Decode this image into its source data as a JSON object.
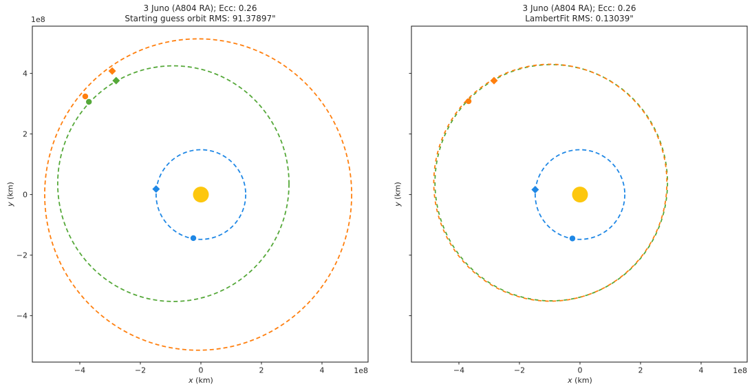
{
  "figure": {
    "background": "#ffffff",
    "frame_color": "#262626",
    "sun_color": "#fdc70e",
    "earth_color": "#1e87e5",
    "true_orbit_color": "#55a839",
    "fit_orbit_color": "#ff7f0e"
  },
  "chart_data": [
    {
      "panel": "left",
      "type": "line",
      "title_line1": "3 Juno (A804 RA); Ecc: 0.26",
      "title_line2": "Starting guess orbit RMS: 91.37897\"",
      "xlabel_var": "x",
      "xlabel_unit": " (km)",
      "ylabel_var": "y",
      "ylabel_unit": " (km)",
      "axis_offset_label": "1e8",
      "units": "1e8 km",
      "xlim": [
        -5.57,
        5.52
      ],
      "ylim": [
        -5.53,
        5.56
      ],
      "x_ticks": [
        -4,
        -2,
        0,
        2,
        4
      ],
      "x_tick_labels": [
        "−4",
        "−2",
        "0",
        "2",
        "4"
      ],
      "y_ticks": [
        4,
        2,
        0,
        -2,
        -4
      ],
      "y_tick_labels": [
        "4",
        "2",
        "0",
        "−2",
        "−4"
      ],
      "show_y_tick_labels": true,
      "show_y_offset_label": true,
      "grid": false,
      "legend": "none",
      "sun": {
        "name": "sun",
        "x": 0,
        "y": 0,
        "radius_px": 11.5,
        "color": "#fdc70e"
      },
      "orbits": [
        {
          "name": "earth-orbit",
          "label": "Earth orbit",
          "color": "#1e87e5",
          "cx": 0,
          "cy": 0,
          "rx": 1.48,
          "ry": 1.48,
          "dash": [
            6,
            4
          ],
          "dash_offset": 0
        },
        {
          "name": "true-orbit",
          "label": "3 Juno true orbit",
          "color": "#55a839",
          "cx": -0.91,
          "cy": 0.36,
          "rx": 3.82,
          "ry": 3.89,
          "dash": [
            6,
            4
          ],
          "dash_offset": 0
        },
        {
          "name": "guess-orbit",
          "label": "Starting guess orbit",
          "color": "#ff7f0e",
          "cx": -0.09,
          "cy": 0,
          "rx": 5.07,
          "ry": 5.14,
          "dash": [
            6,
            4
          ],
          "dash_offset": 0
        }
      ],
      "markers": [
        {
          "name": "earth-obs1-point",
          "shape": "circle",
          "color": "#1e87e5",
          "x": -0.25,
          "y": -1.44,
          "size": 4.2
        },
        {
          "name": "earth-obs2-point",
          "shape": "diamond",
          "color": "#1e87e5",
          "x": -1.48,
          "y": 0.18,
          "size": 5.5
        },
        {
          "name": "guess-obs1-point",
          "shape": "circle",
          "color": "#ff7f0e",
          "x": -3.82,
          "y": 3.24,
          "size": 4.2
        },
        {
          "name": "guess-obs2-point",
          "shape": "diamond",
          "color": "#ff7f0e",
          "x": -2.93,
          "y": 4.08,
          "size": 5.5
        },
        {
          "name": "true-obs1-point",
          "shape": "circle",
          "color": "#55a839",
          "x": -3.7,
          "y": 3.06,
          "size": 4.2
        },
        {
          "name": "true-obs2-point",
          "shape": "diamond",
          "color": "#55a839",
          "x": -2.8,
          "y": 3.76,
          "size": 5.5
        }
      ]
    },
    {
      "panel": "right",
      "type": "line",
      "title_line1": "3 Juno (A804 RA); Ecc: 0.26",
      "title_line2": "LambertFit RMS: 0.13039\"",
      "xlabel_var": "x",
      "xlabel_unit": " (km)",
      "ylabel_var": "y",
      "ylabel_unit": " (km)",
      "axis_offset_label": "1e8",
      "units": "1e8 km",
      "xlim": [
        -5.57,
        5.52
      ],
      "ylim": [
        -5.53,
        5.56
      ],
      "x_ticks": [
        -4,
        -2,
        0,
        2,
        4
      ],
      "x_tick_labels": [
        "−4",
        "−2",
        "0",
        "2",
        "4"
      ],
      "y_ticks": [
        4,
        2,
        0,
        -2,
        -4
      ],
      "y_tick_labels": [],
      "show_y_tick_labels": false,
      "show_y_offset_label": false,
      "grid": false,
      "legend": "none",
      "sun": {
        "name": "sun",
        "x": 0,
        "y": 0,
        "radius_px": 11.5,
        "color": "#fdc70e"
      },
      "orbits": [
        {
          "name": "earth-orbit",
          "label": "Earth orbit",
          "color": "#1e87e5",
          "cx": 0,
          "cy": 0,
          "rx": 1.48,
          "ry": 1.48,
          "dash": [
            6,
            4
          ],
          "dash_offset": 0
        },
        {
          "name": "true-orbit",
          "label": "3 Juno true orbit",
          "color": "#55a839",
          "cx": -0.95,
          "cy": 0.39,
          "rx": 3.84,
          "ry": 3.9,
          "dash": [
            5.3,
            5.3
          ],
          "dash_offset": 0
        },
        {
          "name": "lambert-fit-orbit",
          "label": "LambertFit orbit",
          "color": "#ff7f0e",
          "cx": -0.98,
          "cy": 0.39,
          "rx": 3.85,
          "ry": 3.91,
          "dash": [
            5.3,
            5.3
          ],
          "dash_offset": 5.3
        }
      ],
      "markers": [
        {
          "name": "earth-obs1-point",
          "shape": "circle",
          "color": "#1e87e5",
          "x": -0.25,
          "y": -1.45,
          "size": 4.2
        },
        {
          "name": "earth-obs2-point",
          "shape": "diamond",
          "color": "#1e87e5",
          "x": -1.48,
          "y": 0.16,
          "size": 5.5
        },
        {
          "name": "fit-obs1-point",
          "shape": "circle",
          "color": "#ff7f0e",
          "x": -3.68,
          "y": 3.08,
          "size": 4.2
        },
        {
          "name": "fit-obs2-point",
          "shape": "diamond",
          "color": "#ff7f0e",
          "x": -2.84,
          "y": 3.76,
          "size": 5.5
        }
      ]
    }
  ]
}
